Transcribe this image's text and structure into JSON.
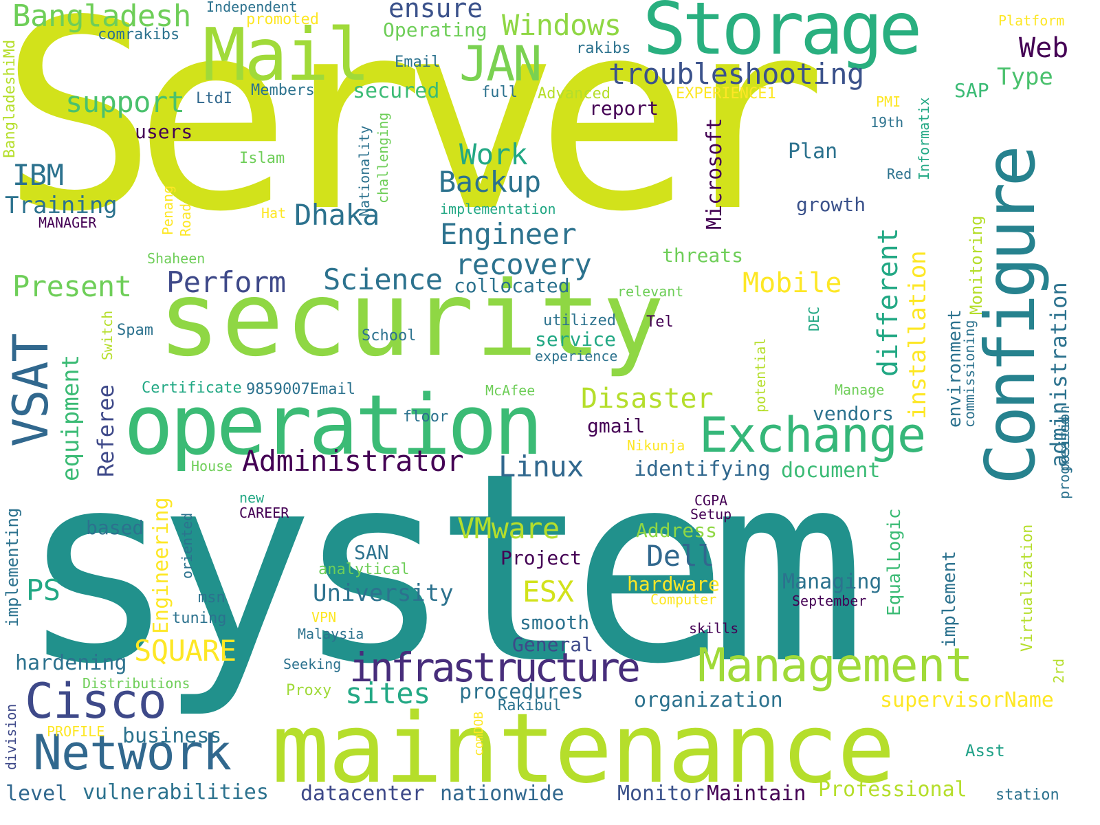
{
  "words": [
    {
      "text": "Server",
      "color": "#d2e21b"
    },
    {
      "text": "system",
      "color": "#21918c"
    },
    {
      "text": "security",
      "color": "#8fd744"
    },
    {
      "text": "maintenance",
      "color": "#b5de2b"
    },
    {
      "text": "operation",
      "color": "#3bbb75"
    },
    {
      "text": "Storage",
      "color": "#29af7f"
    },
    {
      "text": "Mail",
      "color": "#a0da39"
    },
    {
      "text": "Configure",
      "color": "#26828e"
    },
    {
      "text": "Management",
      "color": "#a0da39"
    },
    {
      "text": "Network",
      "color": "#31688e"
    },
    {
      "text": "Cisco",
      "color": "#3e4989"
    },
    {
      "text": "infrastructure",
      "color": "#472d7b"
    },
    {
      "text": "Exchange",
      "color": "#35b779"
    },
    {
      "text": "VSAT",
      "color": "#31688e"
    },
    {
      "text": "JAN",
      "color": "#7ad151"
    },
    {
      "text": "Administrator",
      "color": "#440154"
    },
    {
      "text": "troubleshooting",
      "color": "#3b528b"
    },
    {
      "text": "Bangladesh",
      "color": "#6ece58"
    },
    {
      "text": "Windows",
      "color": "#8fd744"
    },
    {
      "text": "ensure",
      "color": "#3b528b"
    },
    {
      "text": "Web",
      "color": "#440154"
    },
    {
      "text": "Type",
      "color": "#4ac16d"
    },
    {
      "text": "support",
      "color": "#4ac16d"
    },
    {
      "text": "IBM",
      "color": "#2c728e"
    },
    {
      "text": "Training",
      "color": "#2c728e"
    },
    {
      "text": "Backup",
      "color": "#2c728e"
    },
    {
      "text": "Work",
      "color": "#22a884"
    },
    {
      "text": "Dhaka",
      "color": "#2c728e"
    },
    {
      "text": "Engineer",
      "color": "#2c728e"
    },
    {
      "text": "recovery",
      "color": "#2c728e"
    },
    {
      "text": "Science",
      "color": "#2c728e"
    },
    {
      "text": "Perform",
      "color": "#3e4989"
    },
    {
      "text": "Present",
      "color": "#6ece58"
    },
    {
      "text": "collocated",
      "color": "#2c728e"
    },
    {
      "text": "Mobile",
      "color": "#fde725"
    },
    {
      "text": "Disaster",
      "color": "#b5de2b"
    },
    {
      "text": "Linux",
      "color": "#31688e"
    },
    {
      "text": "Dell",
      "color": "#31688e"
    },
    {
      "text": "VMware",
      "color": "#b5de2b"
    },
    {
      "text": "ESX",
      "color": "#d2e21b"
    },
    {
      "text": "University",
      "color": "#2c728e"
    },
    {
      "text": "SQUARE",
      "color": "#fde725"
    },
    {
      "text": "PS",
      "color": "#22a884"
    },
    {
      "text": "sites",
      "color": "#22a884"
    },
    {
      "text": "procedures",
      "color": "#2c728e"
    },
    {
      "text": "organization",
      "color": "#2c728e"
    },
    {
      "text": "supervisorName",
      "color": "#fde725"
    },
    {
      "text": "identifying",
      "color": "#31688e"
    },
    {
      "text": "document",
      "color": "#3bbb75"
    },
    {
      "text": "Managing",
      "color": "#2c728e"
    },
    {
      "text": "hardening",
      "color": "#2c728e"
    },
    {
      "text": "business",
      "color": "#2c728e"
    },
    {
      "text": "level",
      "color": "#31688e"
    },
    {
      "text": "vulnerabilities",
      "color": "#2c728e"
    },
    {
      "text": "datacenter",
      "color": "#3e4989"
    },
    {
      "text": "nationwide",
      "color": "#31688e"
    },
    {
      "text": "Monitor",
      "color": "#3b528b"
    },
    {
      "text": "Maintain",
      "color": "#440154"
    },
    {
      "text": "Professional",
      "color": "#b5de2b"
    },
    {
      "text": "station",
      "color": "#2c728e"
    },
    {
      "text": "Asst",
      "color": "#1fa187"
    },
    {
      "text": "Rakibul",
      "color": "#2c728e"
    },
    {
      "text": "Proxy",
      "color": "#a0da39"
    },
    {
      "text": "Distributions",
      "color": "#6ece58"
    },
    {
      "text": "PROFILE",
      "color": "#fde725"
    },
    {
      "text": "Seeking",
      "color": "#2c728e"
    },
    {
      "text": "Malaysia",
      "color": "#2c728e"
    },
    {
      "text": "VPN",
      "color": "#fde725"
    },
    {
      "text": "smooth",
      "color": "#2c728e"
    },
    {
      "text": "General",
      "color": "#3e4989"
    },
    {
      "text": "skills",
      "color": "#440154"
    },
    {
      "text": "Computer",
      "color": "#fde725"
    },
    {
      "text": "hardware",
      "color": "#fde725"
    },
    {
      "text": "September",
      "color": "#440154"
    },
    {
      "text": "tuning",
      "color": "#2c728e"
    },
    {
      "text": "msn",
      "color": "#2c728e"
    },
    {
      "text": "analytical",
      "color": "#6ece58"
    },
    {
      "text": "SAN",
      "color": "#2c728e"
    },
    {
      "text": "Project",
      "color": "#440154"
    },
    {
      "text": "Address",
      "color": "#8fd744"
    },
    {
      "text": "based",
      "color": "#2c728e"
    },
    {
      "text": "CAREER",
      "color": "#440154"
    },
    {
      "text": "new",
      "color": "#22a884"
    },
    {
      "text": "Setup",
      "color": "#440154"
    },
    {
      "text": "CGPA",
      "color": "#440154"
    },
    {
      "text": "House",
      "color": "#6ece58"
    },
    {
      "text": "Nikunja",
      "color": "#fde725"
    },
    {
      "text": "gmail",
      "color": "#440154"
    },
    {
      "text": "floor",
      "color": "#2c728e"
    },
    {
      "text": "McAfee",
      "color": "#6ece58"
    },
    {
      "text": "Manage",
      "color": "#6ece58"
    },
    {
      "text": "vendors",
      "color": "#2c728e"
    },
    {
      "text": "Certificate",
      "color": "#22a884"
    },
    {
      "text": "9859007Email",
      "color": "#2c728e"
    },
    {
      "text": "School",
      "color": "#2c728e"
    },
    {
      "text": "Spam",
      "color": "#2c728e"
    },
    {
      "text": "experience",
      "color": "#2c728e"
    },
    {
      "text": "service",
      "color": "#22a884"
    },
    {
      "text": "utilized",
      "color": "#2c728e"
    },
    {
      "text": "Tel",
      "color": "#440154"
    },
    {
      "text": "relevant",
      "color": "#6ece58"
    },
    {
      "text": "threats",
      "color": "#6ece58"
    },
    {
      "text": "growth",
      "color": "#3b528b"
    },
    {
      "text": "Plan",
      "color": "#2c728e"
    },
    {
      "text": "Red",
      "color": "#2c728e"
    },
    {
      "text": "19th",
      "color": "#2c728e"
    },
    {
      "text": "PMI",
      "color": "#fde725"
    },
    {
      "text": "SAP",
      "color": "#3bbb75"
    },
    {
      "text": "report",
      "color": "#440154"
    },
    {
      "text": "users",
      "color": "#440154"
    },
    {
      "text": "LtdI",
      "color": "#31688e"
    },
    {
      "text": "Members",
      "color": "#2c728e"
    },
    {
      "text": "full",
      "color": "#2c728e"
    },
    {
      "text": "Advanced",
      "color": "#b5de2b"
    },
    {
      "text": "EXPERIENCE1",
      "color": "#fde725"
    },
    {
      "text": "secured",
      "color": "#3bbb75"
    },
    {
      "text": "Email",
      "color": "#2c728e"
    },
    {
      "text": "rakibs",
      "color": "#2c728e"
    },
    {
      "text": "Platform",
      "color": "#fde725"
    },
    {
      "text": "Operating",
      "color": "#6ece58"
    },
    {
      "text": "Independent",
      "color": "#2c728e"
    },
    {
      "text": "promoted",
      "color": "#fde725"
    },
    {
      "text": "comrakibs",
      "color": "#2c728e"
    },
    {
      "text": "Islam",
      "color": "#6ece58"
    },
    {
      "text": "MANAGER",
      "color": "#440154"
    },
    {
      "text": "Hat",
      "color": "#fde725"
    },
    {
      "text": "Shaheen",
      "color": "#6ece58"
    },
    {
      "text": "implementation",
      "color": "#22a884"
    },
    {
      "text": "BangladeshiMd",
      "color": "#b5de2b"
    },
    {
      "text": "Penang",
      "color": "#fde725"
    },
    {
      "text": "Road",
      "color": "#fde725"
    },
    {
      "text": "Nationality",
      "color": "#2c728e"
    },
    {
      "text": "challenging",
      "color": "#6ece58"
    },
    {
      "text": "Microsoft",
      "color": "#440154"
    },
    {
      "text": "installation",
      "color": "#fde725"
    },
    {
      "text": "different",
      "color": "#22a884"
    },
    {
      "text": "administration",
      "color": "#2c728e"
    },
    {
      "text": "Monitoring",
      "color": "#b5de2b"
    },
    {
      "text": "Informatix",
      "color": "#22a884"
    },
    {
      "text": "environment",
      "color": "#2c728e"
    },
    {
      "text": "commissioning",
      "color": "#2c728e"
    },
    {
      "text": "DEC",
      "color": "#22a884"
    },
    {
      "text": "potential",
      "color": "#b5de2b"
    },
    {
      "text": "position",
      "color": "#2c728e"
    },
    {
      "text": "progressed",
      "color": "#2c728e"
    },
    {
      "text": "equipment",
      "color": "#3bbb75"
    },
    {
      "text": "Referee",
      "color": "#3e4989"
    },
    {
      "text": "Switch",
      "color": "#b5de2b"
    },
    {
      "text": "Engineering",
      "color": "#fde725"
    },
    {
      "text": "oriented",
      "color": "#2c728e"
    },
    {
      "text": "implementing",
      "color": "#2c728e"
    },
    {
      "text": "EqualLogic",
      "color": "#3bbb75"
    },
    {
      "text": "implement",
      "color": "#2c728e"
    },
    {
      "text": "Virtualization",
      "color": "#b5de2b"
    },
    {
      "text": "2rd",
      "color": "#b5de2b"
    },
    {
      "text": "division",
      "color": "#3e4989"
    },
    {
      "text": "comDOB",
      "color": "#fde725"
    }
  ]
}
